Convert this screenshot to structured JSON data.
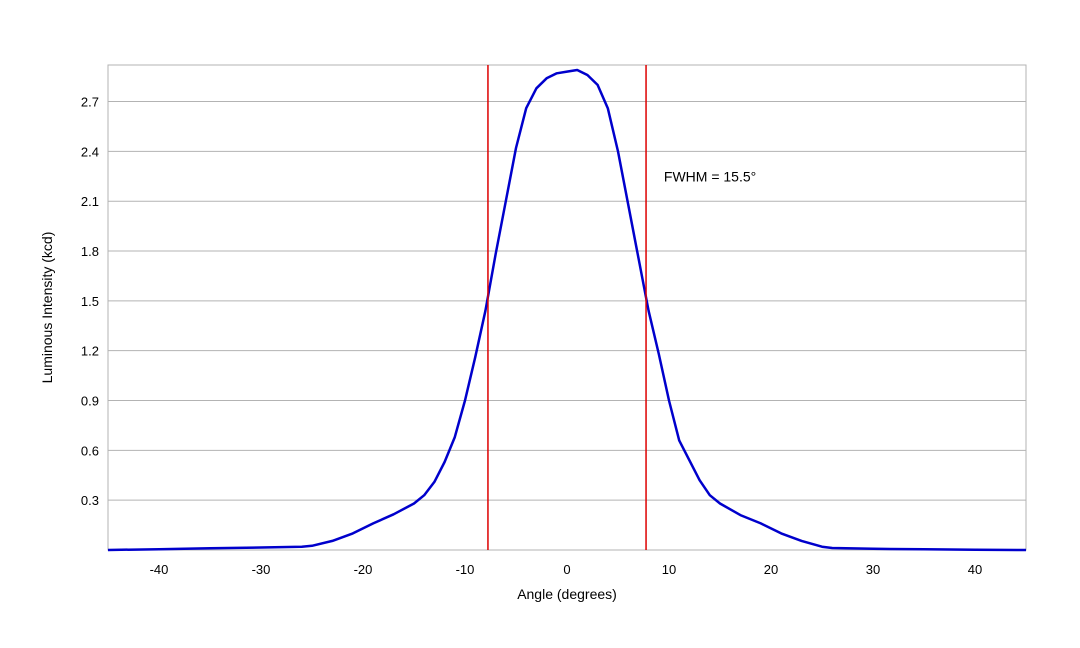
{
  "chart_data": {
    "type": "line",
    "title": "",
    "xlabel": "Angle (degrees)",
    "ylabel": "Luminous Intensity (kcd)",
    "xlim": [
      -45,
      45
    ],
    "ylim": [
      0,
      2.92
    ],
    "grid": {
      "horizontal": true,
      "vertical": false
    },
    "x_ticks": [
      -40,
      -30,
      -20,
      -10,
      0,
      10,
      20,
      30,
      40
    ],
    "x_tick_labels": [
      "-40",
      "-30",
      "-20",
      "-10",
      "0",
      "10",
      "20",
      "30",
      "40"
    ],
    "y_ticks": [
      0.3,
      0.6,
      0.9,
      1.2,
      1.5,
      1.8,
      2.1,
      2.4,
      2.7
    ],
    "y_tick_labels": [
      "0.3",
      "0.6",
      "0.9",
      "1.2",
      "1.5",
      "1.8",
      "2.1",
      "2.4",
      "2.7"
    ],
    "colors": {
      "series": "#0000cc",
      "markers": "#dd0000",
      "grid": "#b3b3b3",
      "frame": "#b3b3b3"
    },
    "series": [
      {
        "x": [
          -45,
          -40,
          -35,
          -30,
          -26,
          -25,
          -23,
          -21,
          -19,
          -17,
          -15,
          -14,
          -13,
          -12,
          -11,
          -10,
          -9,
          -8,
          -7,
          -6,
          -5,
          -4,
          -3,
          -2,
          -1,
          0,
          1,
          2,
          3,
          4,
          5,
          6,
          7,
          8,
          9,
          10,
          11,
          12,
          13,
          14,
          15,
          17,
          19,
          21,
          23,
          25,
          26,
          30,
          35,
          40,
          45
        ],
        "y": [
          0.0,
          0.005,
          0.01,
          0.015,
          0.02,
          0.025,
          0.055,
          0.1,
          0.16,
          0.215,
          0.28,
          0.33,
          0.41,
          0.53,
          0.68,
          0.9,
          1.16,
          1.44,
          1.78,
          2.1,
          2.42,
          2.66,
          2.78,
          2.84,
          2.87,
          2.88,
          2.89,
          2.86,
          2.8,
          2.66,
          2.4,
          2.08,
          1.76,
          1.44,
          1.18,
          0.9,
          0.66,
          0.54,
          0.42,
          0.33,
          0.28,
          0.21,
          0.16,
          0.1,
          0.055,
          0.02,
          0.012,
          0.007,
          0.004,
          0.002,
          0.0
        ]
      }
    ],
    "markers": [
      -7.75,
      7.75
    ],
    "annotations": [
      {
        "text": "FWHM = 15.5°",
        "x": 9.5,
        "y": 2.25
      }
    ]
  }
}
